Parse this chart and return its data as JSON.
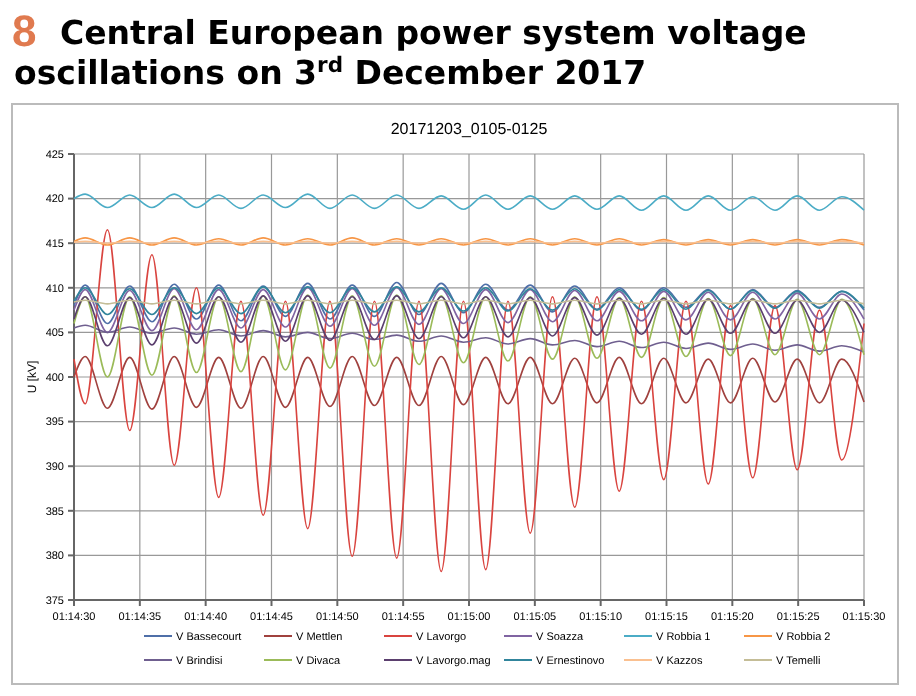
{
  "chart_data": {
    "type": "line",
    "title": "Central European power system voltage oscillations on 3$^{rd}$ December 2017",
    "subtitle": "20171203_0105-0125",
    "annotations": [
      "8"
    ],
    "ylabel": "U [kV]",
    "x": [
      1.2416667,
      1.2419028,
      1.2423722,
      1.2428417,
      1.2433111,
      1.2437806,
      1.24425,
      1.2447194,
      1.2451889,
      1.2456583,
      1.2461278,
      1.2465972,
      1.2470667,
      1.2475361,
      1.2480056,
      1.248475,
      1.2489444,
      1.2494139,
      1.2498833,
      1.2503528,
      1.2508222,
      1.2512917,
      1.2517611,
      1.2522306,
      1.2527,
      1.2531694,
      1.2536389,
      1.2541083,
      1.2545778,
      1.2550472,
      1.2555167,
      1.2559861,
      1.2564556,
      1.256925,
      1.2573944,
      1.2578639,
      1.2583333
    ],
    "xlim": [
      1.2416667,
      1.2583333
    ],
    "xticks": [
      {
        "value": 1.2416667,
        "label": "01:14:30"
      },
      {
        "value": 1.2430556,
        "label": "01:14:35"
      },
      {
        "value": 1.2444444,
        "label": "01:14:40"
      },
      {
        "value": 1.2458333,
        "label": "01:14:45"
      },
      {
        "value": 1.2472222,
        "label": "01:14:50"
      },
      {
        "value": 1.2486111,
        "label": "01:14:55"
      },
      {
        "value": 1.25,
        "label": "01:15:00"
      },
      {
        "value": 1.2513889,
        "label": "01:15:05"
      },
      {
        "value": 1.2527778,
        "label": "01:15:10"
      },
      {
        "value": 1.2541667,
        "label": "01:15:15"
      },
      {
        "value": 1.2555556,
        "label": "01:15:20"
      },
      {
        "value": 1.2569444,
        "label": "01:15:25"
      },
      {
        "value": 1.2583333,
        "label": "01:15:30"
      }
    ],
    "ylim": [
      375,
      425
    ],
    "yticks": [
      375,
      380,
      385,
      390,
      395,
      400,
      405,
      410,
      415,
      420,
      425
    ],
    "grid": true,
    "legend": "bottom",
    "marker": "none",
    "line_style": "solid",
    "series": [
      {
        "name": "V Bassecourt",
        "color": "#4f6fa8",
        "values": [
          408,
          410.3,
          406.0,
          410.2,
          406.2,
          410.4,
          406.5,
          410.3,
          406.3,
          410.2,
          406.8,
          410.5,
          406.5,
          410.3,
          406.8,
          410.6,
          407.0,
          410.5,
          407.2,
          410.4,
          407.5,
          410.3,
          407.3,
          410.2,
          407.6,
          410.0,
          407.5,
          410.0,
          407.8,
          409.8,
          407.6,
          409.8,
          407.8,
          409.7,
          407.8,
          409.6,
          407.5
        ]
      },
      {
        "name": "V Mettlen",
        "color": "#a0413e",
        "values": [
          400,
          402.3,
          396.5,
          402.2,
          396.4,
          402.3,
          396.6,
          402.2,
          396.5,
          402.3,
          396.6,
          402.2,
          396.7,
          402.3,
          396.8,
          402.2,
          396.8,
          402.3,
          396.9,
          402.2,
          397.0,
          402.2,
          397.0,
          402.1,
          397.1,
          402.2,
          397.0,
          402.1,
          397.1,
          402.0,
          397.1,
          402.1,
          397.2,
          402.0,
          397.1,
          402.0,
          397.2
        ]
      },
      {
        "name": "V Lavorgo",
        "color": "#d9443f",
        "values": [
          402,
          397,
          416.5,
          394.0,
          413.7,
          390.1,
          410.0,
          386.5,
          408.5,
          384.5,
          408.5,
          383.0,
          408.5,
          379.9,
          408.5,
          379.7,
          408.5,
          378.2,
          408.5,
          378.4,
          408.5,
          382.5,
          409,
          385.4,
          409,
          387.2,
          408.5,
          388.5,
          408.5,
          388.0,
          408,
          388.7,
          408,
          389.6,
          407.5,
          390.7,
          406
        ]
      },
      {
        "name": "V Soazza",
        "color": "#8064a2",
        "values": [
          407.5,
          409.8,
          405.0,
          409.7,
          405.2,
          409.9,
          405.3,
          409.8,
          405.5,
          409.8,
          405.6,
          410.0,
          405.7,
          409.9,
          405.8,
          410.0,
          405.9,
          409.9,
          406.0,
          409.8,
          406.1,
          409.8,
          406.2,
          409.7,
          406.3,
          409.6,
          406.3,
          409.6,
          406.4,
          409.5,
          406.4,
          409.5,
          406.5,
          409.4,
          406.5,
          409.3,
          406.5
        ]
      },
      {
        "name": "V Robbia 1",
        "color": "#4bacc6",
        "values": [
          420,
          420.5,
          419.0,
          420.4,
          419.0,
          420.5,
          419.0,
          420.4,
          418.9,
          420.4,
          419.0,
          420.5,
          418.9,
          420.4,
          418.9,
          420.4,
          418.9,
          420.3,
          418.8,
          420.4,
          418.8,
          420.3,
          418.8,
          420.3,
          418.8,
          420.3,
          418.7,
          420.3,
          418.7,
          420.3,
          418.7,
          420.2,
          418.7,
          420.3,
          418.7,
          420.2,
          418.7
        ]
      },
      {
        "name": "V Robbia 2",
        "color": "#f79646",
        "values": [
          415.2,
          415.6,
          414.8,
          415.6,
          414.8,
          415.6,
          414.8,
          415.5,
          414.8,
          415.6,
          414.8,
          415.5,
          414.8,
          415.6,
          414.8,
          415.5,
          414.8,
          415.5,
          414.8,
          415.5,
          414.8,
          415.5,
          414.8,
          415.5,
          414.8,
          415.5,
          414.8,
          415.4,
          414.8,
          415.4,
          414.8,
          415.4,
          414.8,
          415.4,
          414.8,
          415.4,
          414.8
        ]
      },
      {
        "name": "V Brindisi",
        "color": "#6f5f8f",
        "values": [
          405.5,
          405.8,
          405.0,
          405.6,
          404.9,
          405.5,
          404.8,
          405.3,
          404.6,
          405.2,
          404.5,
          405.0,
          404.3,
          404.9,
          404.2,
          404.7,
          404.0,
          404.6,
          403.9,
          404.4,
          403.7,
          404.3,
          403.6,
          404.1,
          403.4,
          404.0,
          403.3,
          403.9,
          403.2,
          403.8,
          403.1,
          403.7,
          403.0,
          403.6,
          402.9,
          403.5,
          402.8
        ]
      },
      {
        "name": "V Divaca",
        "color": "#9bbb59",
        "values": [
          406,
          409.0,
          400.0,
          409.0,
          400.2,
          409.1,
          400.5,
          409.0,
          400.6,
          409.1,
          400.8,
          409.2,
          401.0,
          409.1,
          401.2,
          409.2,
          401.4,
          409.1,
          401.6,
          409.0,
          401.8,
          409.0,
          402.0,
          409.0,
          402.1,
          408.9,
          402.2,
          408.9,
          402.3,
          408.8,
          402.4,
          408.8,
          402.5,
          408.7,
          402.5,
          408.7,
          402.5
        ]
      },
      {
        "name": "V Lavorgo.mag",
        "color": "#5b3f6e",
        "values": [
          406.5,
          409.0,
          403.5,
          408.9,
          403.6,
          409.0,
          403.8,
          409.0,
          403.9,
          409.1,
          404.0,
          409.1,
          404.1,
          409.0,
          404.2,
          409.1,
          404.3,
          409.0,
          404.4,
          409.0,
          404.5,
          408.9,
          404.6,
          408.9,
          404.7,
          408.8,
          404.8,
          408.8,
          404.8,
          408.7,
          404.9,
          408.7,
          404.9,
          408.6,
          405.0,
          408.6,
          405.0
        ]
      },
      {
        "name": "V Ernestinovo",
        "color": "#31859c",
        "values": [
          408.5,
          410.0,
          407.0,
          409.9,
          407.0,
          410.0,
          407.1,
          410.0,
          407.1,
          410.1,
          407.2,
          410.1,
          407.2,
          410.0,
          407.3,
          410.1,
          407.3,
          410.0,
          407.4,
          410.0,
          407.4,
          409.9,
          407.5,
          409.9,
          407.5,
          409.8,
          407.6,
          409.8,
          407.6,
          409.7,
          407.6,
          409.7,
          407.7,
          409.6,
          407.7,
          409.6,
          407.7
        ]
      },
      {
        "name": "V Kazzos",
        "color": "#fac090",
        "values": [
          415.1,
          415.2,
          415.0,
          415.2,
          415.0,
          415.2,
          415.0,
          415.2,
          415.0,
          415.2,
          415.0,
          415.2,
          415.0,
          415.2,
          415.0,
          415.2,
          415.0,
          415.2,
          415.0,
          415.2,
          415.0,
          415.2,
          415.0,
          415.2,
          415.0,
          415.2,
          415.0,
          415.2,
          415.0,
          415.2,
          415.0,
          415.2,
          415.0,
          415.2,
          415.0,
          415.2,
          415.0
        ]
      },
      {
        "name": "V Temelli",
        "color": "#c4bd97",
        "values": [
          408.4,
          408.6,
          408.2,
          408.6,
          408.2,
          408.6,
          408.2,
          408.6,
          408.2,
          408.6,
          408.2,
          408.6,
          408.2,
          408.6,
          408.2,
          408.6,
          408.2,
          408.6,
          408.2,
          408.6,
          408.2,
          408.6,
          408.2,
          408.6,
          408.2,
          408.6,
          408.2,
          408.6,
          408.2,
          408.6,
          408.2,
          408.6,
          408.2,
          408.6,
          408.2,
          408.6,
          408.2
        ]
      }
    ]
  }
}
